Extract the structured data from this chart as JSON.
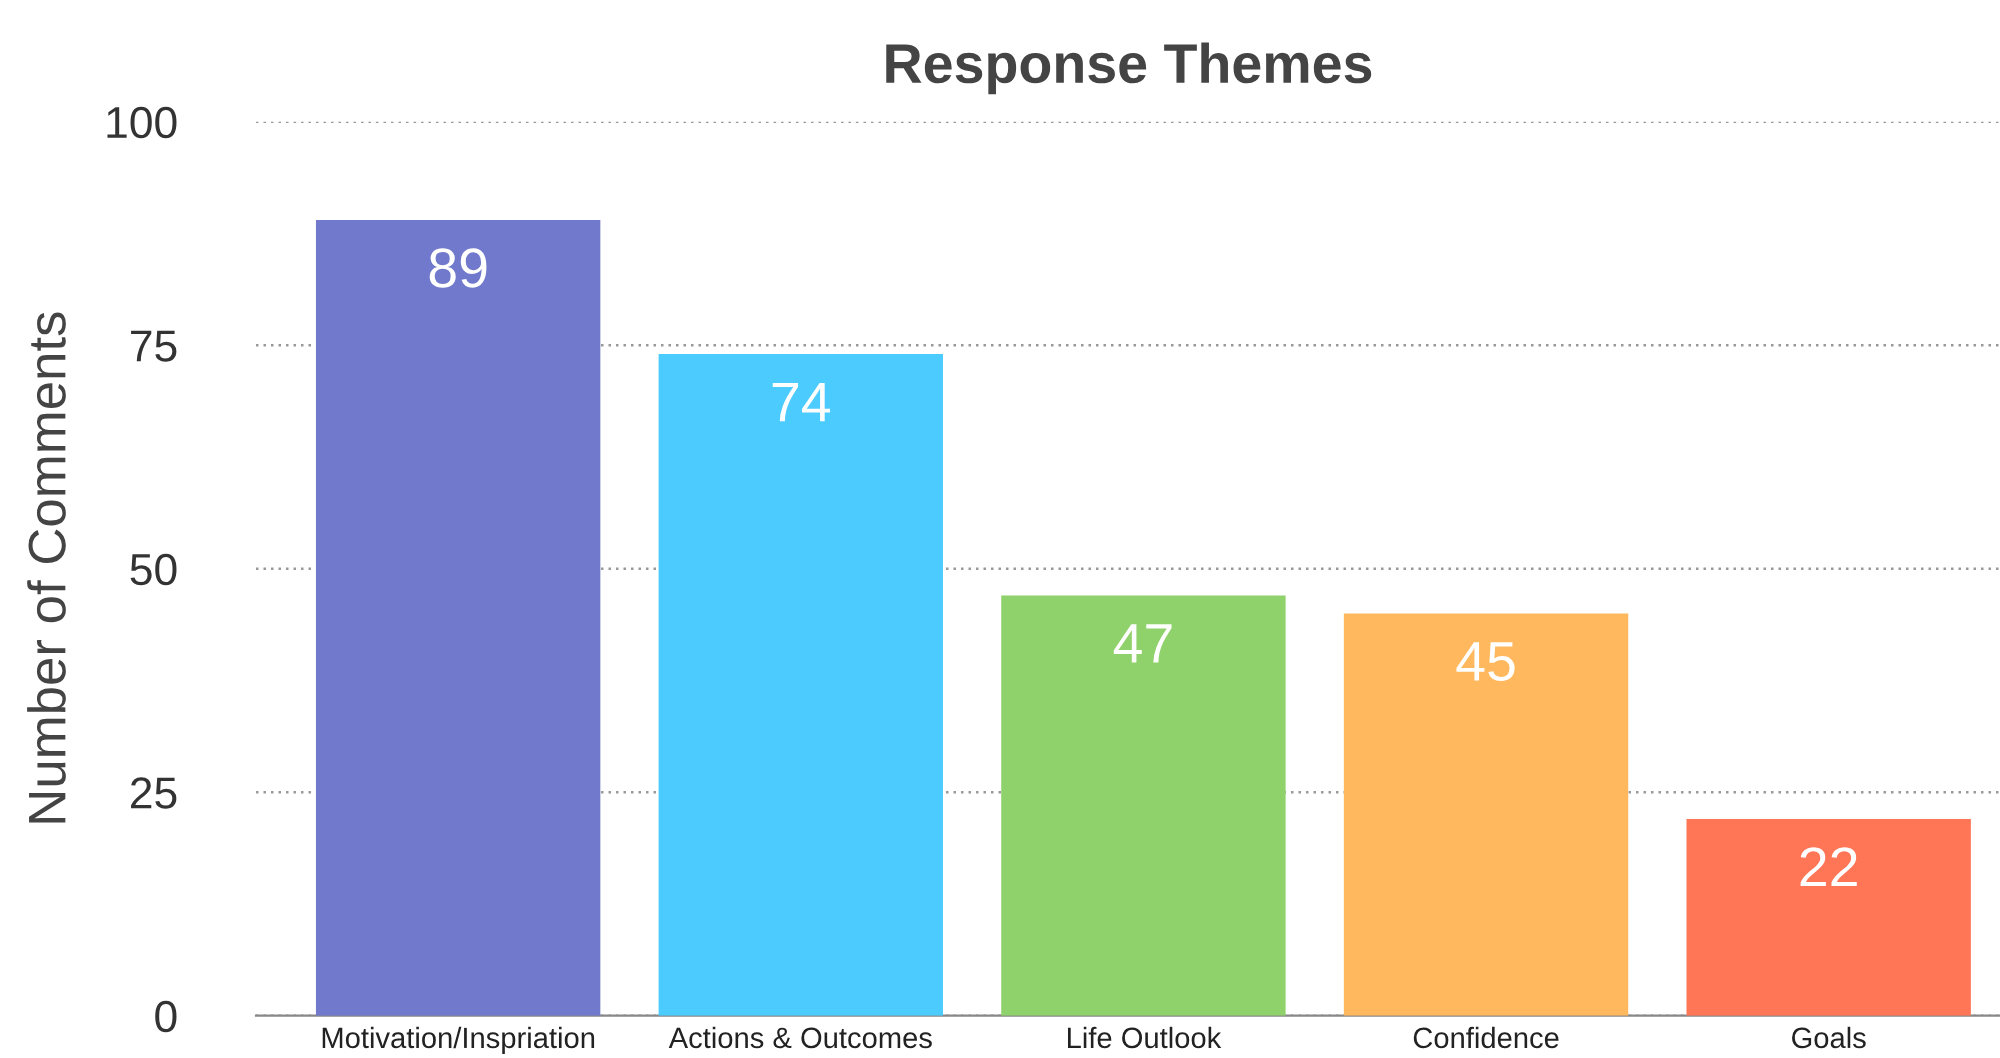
{
  "chart_data": {
    "type": "bar",
    "title": "Response Themes",
    "ylabel": "Number of Comments",
    "categories": [
      "Motivation/Inspriation",
      "Actions & Outcomes",
      "Life Outlook",
      "Confidence",
      "Goals"
    ],
    "values": [
      89,
      74,
      47,
      45,
      22
    ],
    "colors": [
      "#7079cc",
      "#4ccbff",
      "#8fd16a",
      "#ffb85e",
      "#ff7656"
    ],
    "ylim": [
      0,
      100
    ],
    "yticks": [
      0,
      25,
      50,
      75,
      100
    ],
    "grid": "y",
    "data_labels": true
  }
}
